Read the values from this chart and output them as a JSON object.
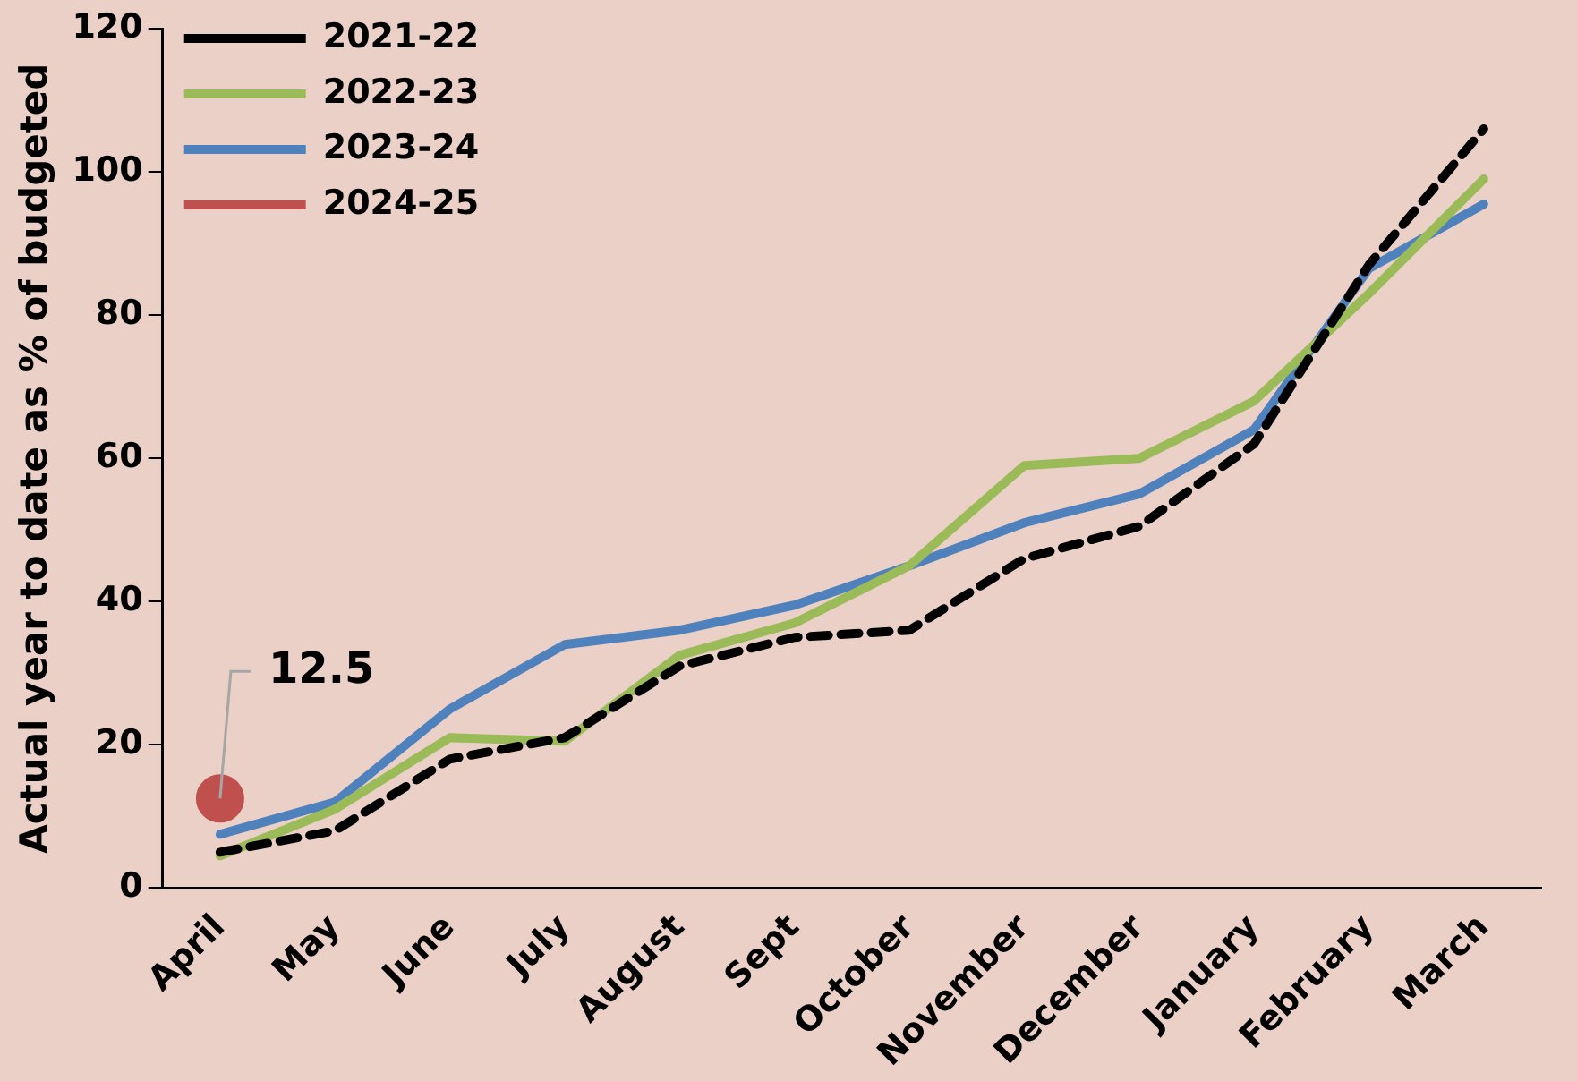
{
  "chart_data": {
    "type": "line",
    "ylabel": "Actual year to date as % of budgeted",
    "categories": [
      "April",
      "May",
      "June",
      "July",
      "August",
      "Sept",
      "October",
      "November",
      "December",
      "January",
      "February",
      "March"
    ],
    "series": [
      {
        "name": "2021-22",
        "color": "#000000",
        "line_style": "dashed",
        "marker": "none",
        "values": [
          5,
          8,
          18,
          21,
          31,
          35,
          36,
          46,
          50.5,
          62,
          87,
          106
        ]
      },
      {
        "name": "2022-23",
        "color": "#9bbb59",
        "line_style": "solid",
        "marker": "none",
        "values": [
          4.5,
          11,
          21,
          20.5,
          32.5,
          37,
          45,
          59,
          60,
          68,
          83,
          99
        ]
      },
      {
        "name": "2023-24",
        "color": "#4f81bd",
        "line_style": "solid",
        "marker": "none",
        "values": [
          7.5,
          12,
          25,
          34,
          36,
          39.5,
          45,
          51,
          55,
          64,
          86.5,
          95.5
        ]
      },
      {
        "name": "2024-25",
        "color": "#c0504d",
        "line_style": "solid",
        "marker": "circle",
        "values": [
          12.5,
          null,
          null,
          null,
          null,
          null,
          null,
          null,
          null,
          null,
          null,
          null
        ],
        "value_labels": [
          "12.5",
          null,
          null,
          null,
          null,
          null,
          null,
          null,
          null,
          null,
          null,
          null
        ]
      }
    ],
    "ylim": [
      0,
      120
    ],
    "yticks": [
      0,
      20,
      40,
      60,
      80,
      100,
      120
    ],
    "grid": false,
    "legend": "top left"
  }
}
